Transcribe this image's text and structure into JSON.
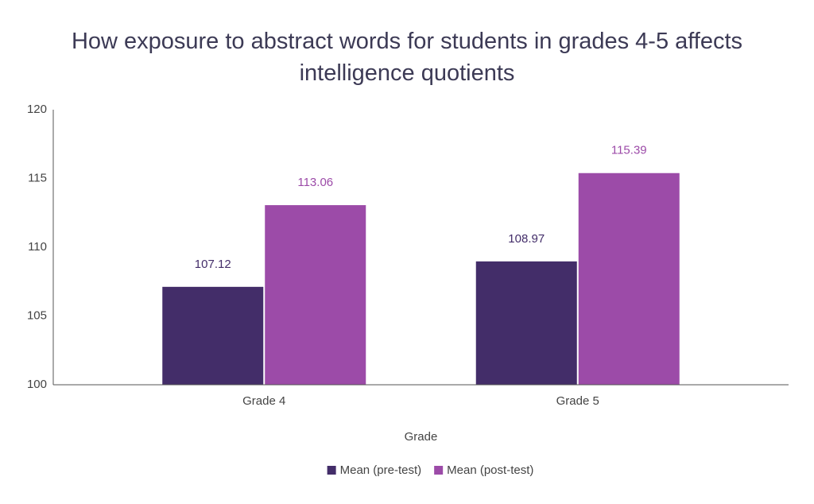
{
  "chart_data": {
    "type": "bar",
    "title": "How exposure to abstract words for students in grades 4-5 affects intelligence quotients",
    "x_label": "Grade",
    "categories": [
      "Grade 4",
      "Grade 5"
    ],
    "series": [
      {
        "name": "Mean (pre-test)",
        "color": "#432d69",
        "values": [
          107.12,
          108.97
        ]
      },
      {
        "name": "Mean (post-test)",
        "color": "#9c4ba8",
        "values": [
          113.06,
          115.39
        ]
      }
    ],
    "ylim": [
      100,
      120
    ],
    "yticks": [
      100,
      105,
      110,
      115,
      120
    ],
    "grid": false,
    "legend": "bottom"
  }
}
